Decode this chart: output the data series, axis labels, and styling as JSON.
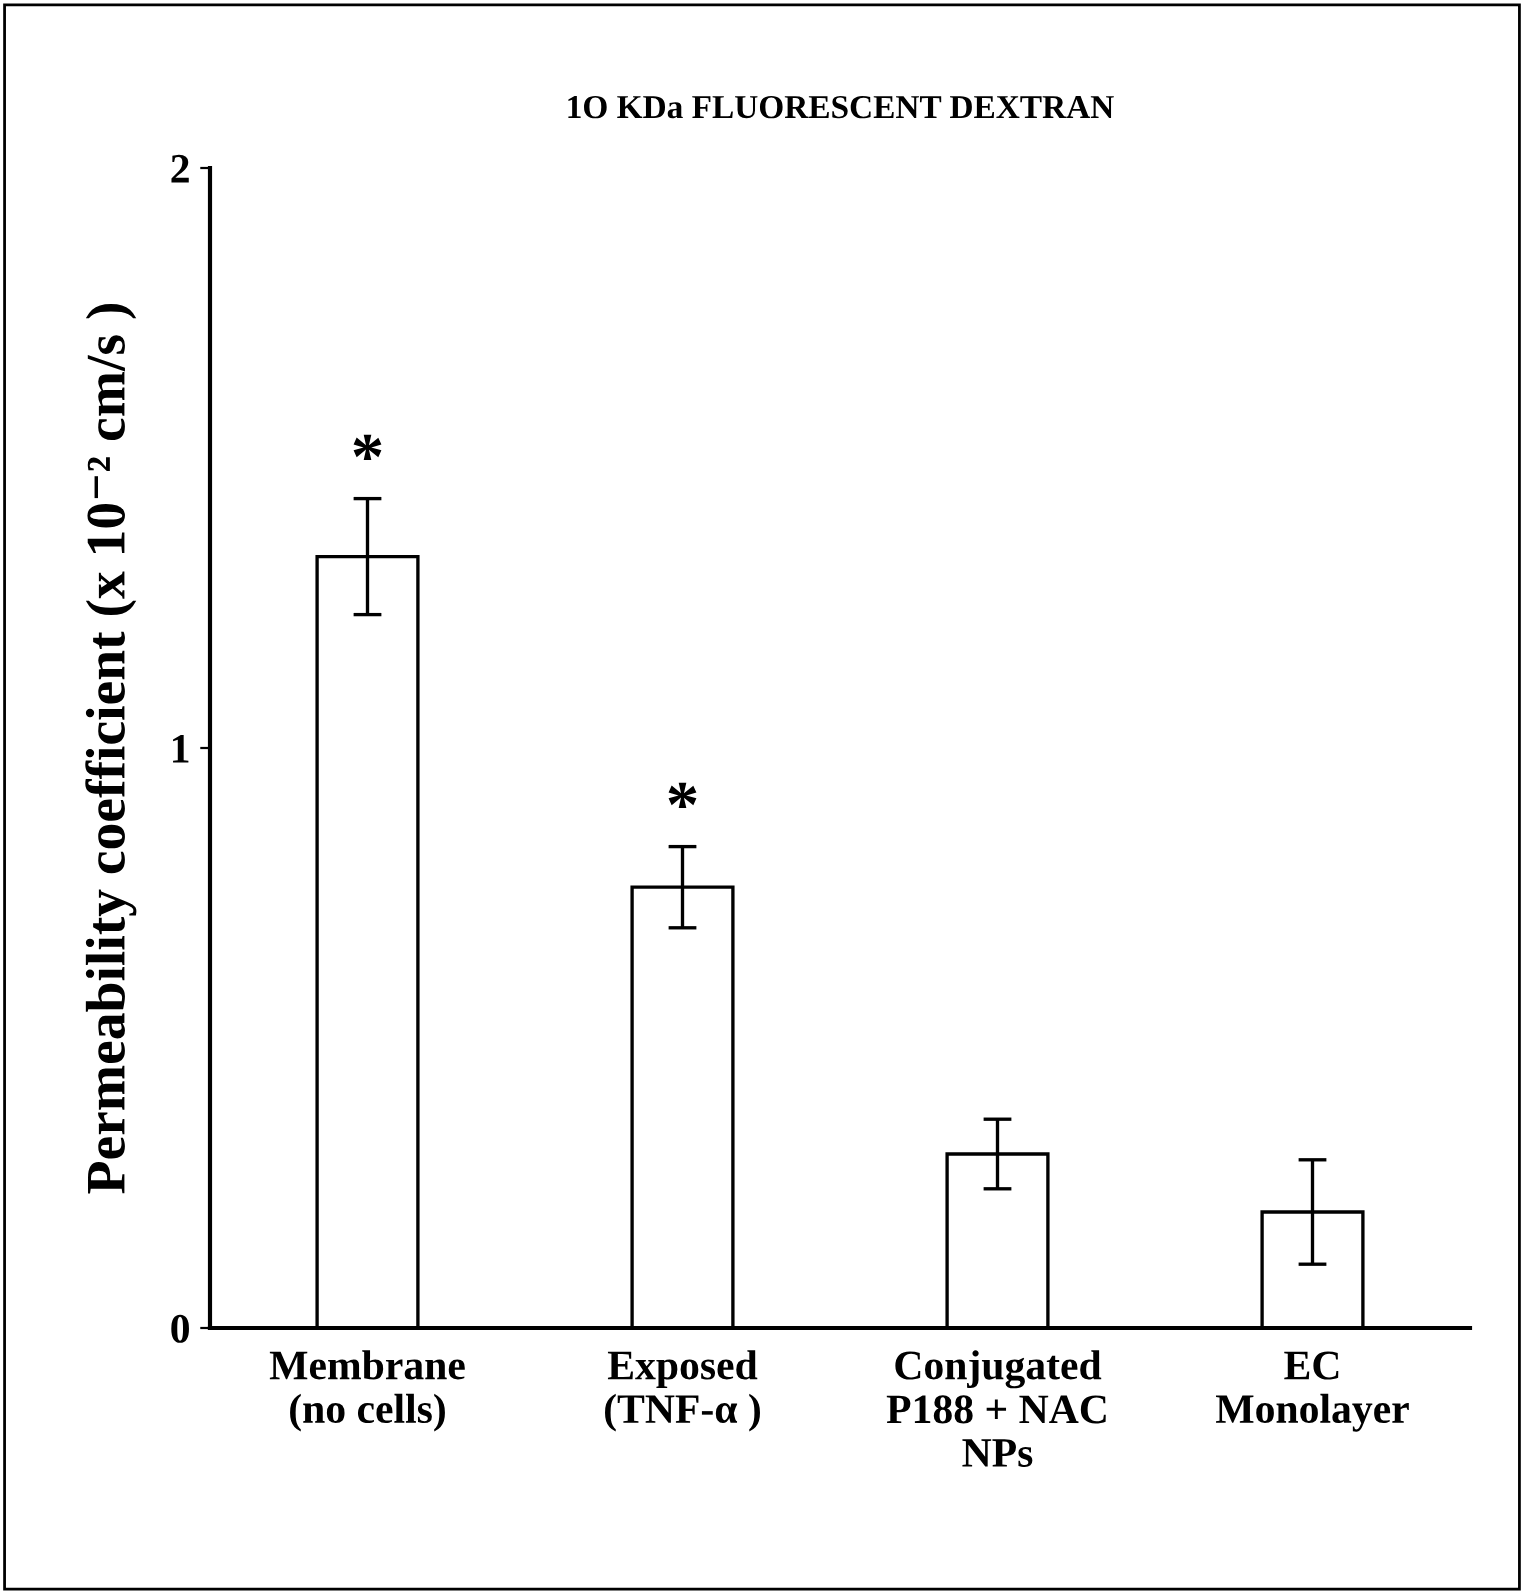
{
  "chart_data": {
    "type": "bar",
    "title": "1O KDa FLUORESCENT DEXTRAN",
    "ylabel": "Permeability coefficient (x 10⁻² cm/s )",
    "categories": [
      "Membrane\n(no cells)",
      "Exposed\n(TNF-α )",
      "Conjugated\nP188 + NAC\nNPs",
      "EC\nMonolayer"
    ],
    "values": [
      1.33,
      0.76,
      0.3,
      0.2
    ],
    "errors": [
      0.1,
      0.07,
      0.06,
      0.09
    ],
    "color": "#ffffff",
    "ylim": [
      0,
      2
    ],
    "yticks": [
      0,
      1,
      2
    ],
    "grid": false,
    "annotations": [
      {
        "text": "*",
        "x": "Membrane\n(no cells)",
        "y": 1.43
      },
      {
        "text": "*",
        "x": "Exposed\n(TNF-α )",
        "y": 0.83
      }
    ]
  }
}
